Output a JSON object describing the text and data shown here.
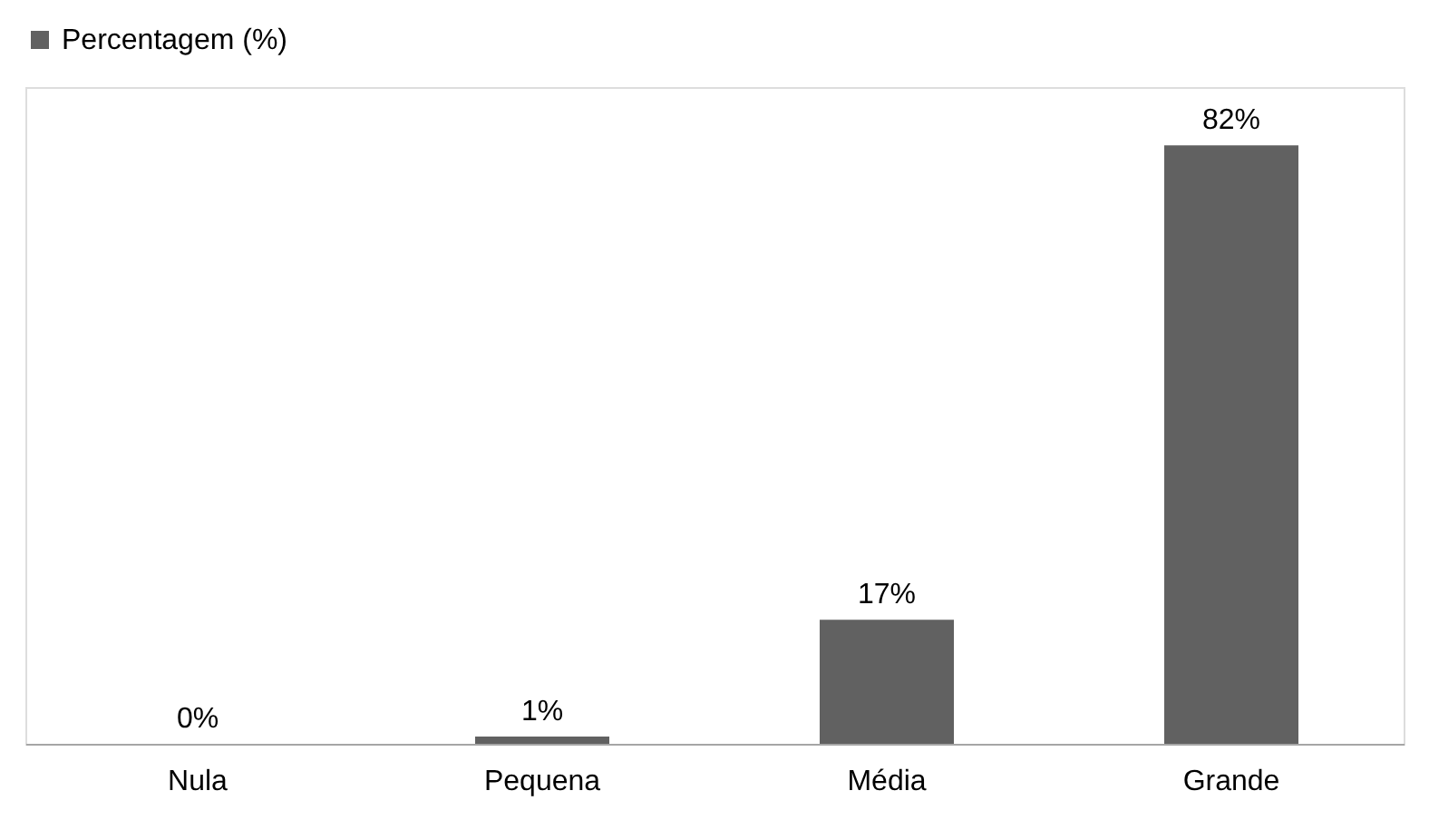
{
  "chart_data": {
    "type": "bar",
    "categories": [
      "Nula",
      "Pequena",
      "Média",
      "Grande"
    ],
    "series": [
      {
        "name": "Percentagem (%)",
        "color": "#616161",
        "values": [
          0,
          1,
          17,
          82
        ],
        "value_labels": [
          "0%",
          "1%",
          "17%",
          "82%"
        ]
      }
    ],
    "legend": "top"
  }
}
